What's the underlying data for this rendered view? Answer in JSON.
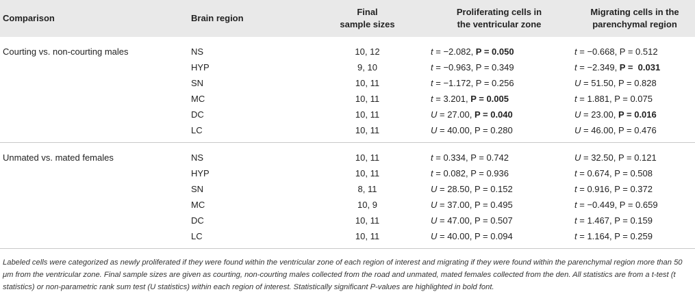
{
  "headers": {
    "comparison": "Comparison",
    "brain_region": "Brain region",
    "final_line1": "Final",
    "final_line2": "sample sizes",
    "prolif_line1": "Proliferating cells in",
    "prolif_line2": "the ventricular zone",
    "migr_line1": "Migrating cells in the",
    "migr_line2": "parenchymal region"
  },
  "groups": [
    {
      "comparison": "Courting vs. non-courting males",
      "rows": [
        {
          "region": "NS",
          "sizes": "10, 12",
          "p1": {
            "stat": "t",
            "val": " = −2.082, ",
            "pv": "P = 0.050",
            "bold": true
          },
          "p2": {
            "stat": "t",
            "val": " = −0.668, ",
            "pv": "P = 0.512",
            "bold": false
          }
        },
        {
          "region": "HYP",
          "sizes": "9, 10",
          "p1": {
            "stat": "t",
            "val": " = −0.963, ",
            "pv": "P = 0.349",
            "bold": false
          },
          "p2": {
            "stat": "t",
            "val": " = −2.349, ",
            "pv": "P =  0.031",
            "bold": true
          }
        },
        {
          "region": "SN",
          "sizes": "10, 11",
          "p1": {
            "stat": "t",
            "val": " = −1.172, ",
            "pv": "P = 0.256",
            "bold": false
          },
          "p2": {
            "stat": "U",
            "val": " = 51.50, ",
            "pv": "P = 0.828",
            "bold": false
          }
        },
        {
          "region": "MC",
          "sizes": "10, 11",
          "p1": {
            "stat": "t",
            "val": " = 3.201, ",
            "pv": "P = 0.005",
            "bold": true
          },
          "p2": {
            "stat": "t",
            "val": " = 1.881, ",
            "pv": "P = 0.075",
            "bold": false
          }
        },
        {
          "region": "DC",
          "sizes": "10, 11",
          "p1": {
            "stat": "U",
            "val": " = 27.00, ",
            "pv": "P = 0.040",
            "bold": true
          },
          "p2": {
            "stat": "U",
            "val": " = 23.00, ",
            "pv": "P = 0.016",
            "bold": true
          }
        },
        {
          "region": "LC",
          "sizes": "10, 11",
          "p1": {
            "stat": "U",
            "val": " = 40.00, ",
            "pv": "P = 0.280",
            "bold": false
          },
          "p2": {
            "stat": "U",
            "val": " = 46.00, ",
            "pv": "P = 0.476",
            "bold": false
          }
        }
      ]
    },
    {
      "comparison": "Unmated vs. mated females",
      "rows": [
        {
          "region": "NS",
          "sizes": "10, 11",
          "p1": {
            "stat": "t",
            "val": " = 0.334, ",
            "pv": "P = 0.742",
            "bold": false
          },
          "p2": {
            "stat": "U",
            "val": " = 32.50, ",
            "pv": "P = 0.121",
            "bold": false
          }
        },
        {
          "region": "HYP",
          "sizes": "10, 11",
          "p1": {
            "stat": "t",
            "val": " = 0.082, ",
            "pv": "P = 0.936",
            "bold": false
          },
          "p2": {
            "stat": "t",
            "val": " = 0.674, ",
            "pv": "P = 0.508",
            "bold": false
          }
        },
        {
          "region": "SN",
          "sizes": "8, 11",
          "p1": {
            "stat": "U",
            "val": " = 28.50, ",
            "pv": "P = 0.152",
            "bold": false
          },
          "p2": {
            "stat": "t",
            "val": " = 0.916, ",
            "pv": "P = 0.372",
            "bold": false
          }
        },
        {
          "region": "MC",
          "sizes": "10, 9",
          "p1": {
            "stat": "U",
            "val": " = 37.00, ",
            "pv": "P = 0.495",
            "bold": false
          },
          "p2": {
            "stat": "t",
            "val": " = −0.449, ",
            "pv": "P = 0.659",
            "bold": false
          }
        },
        {
          "region": "DC",
          "sizes": "10, 11",
          "p1": {
            "stat": "U",
            "val": " = 47.00, ",
            "pv": "P = 0.507",
            "bold": false
          },
          "p2": {
            "stat": "t",
            "val": " = 1.467, ",
            "pv": "P = 0.159",
            "bold": false
          }
        },
        {
          "region": "LC",
          "sizes": "10, 11",
          "p1": {
            "stat": "U",
            "val": " = 40.00, ",
            "pv": "P = 0.094",
            "bold": false
          },
          "p2": {
            "stat": "t",
            "val": " = 1.164, ",
            "pv": "P = 0.259",
            "bold": false
          }
        }
      ]
    }
  ],
  "footnote": "Labeled cells were categorized as newly proliferated if they were found within the ventricular zone of each region of interest and migrating if they were found within the parenchymal region more than 50 μm from the ventricular zone. Final sample sizes are given as courting, non-courting males collected from the road and unmated, mated females collected from the den. All statistics are from a t-test (t statistics) or non-parametric rank sum test (U statistics) within each region of interest. Statistically significant P-values are highlighted in bold font."
}
